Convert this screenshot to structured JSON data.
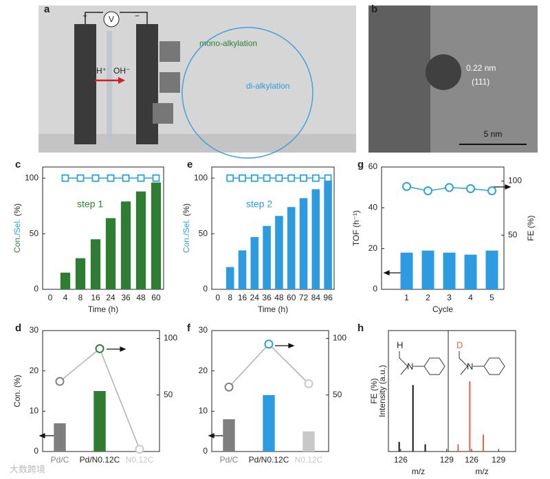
{
  "panel_labels": [
    "a",
    "b",
    "c",
    "d",
    "e",
    "f",
    "g",
    "h"
  ],
  "schematic": {
    "plus": "+",
    "minus": "−",
    "voltmeter": "V",
    "proton": "H⁺",
    "hydroxide": "OH⁻",
    "mono": "mono-alkylation",
    "di": "di-alkylation"
  },
  "tem": {
    "spacing": "0.22 nm",
    "plane": "(111)",
    "scale_bar": "5 nm"
  },
  "watermark": "大数跨境",
  "chart_data": [
    {
      "type": "bar",
      "x_label": "Time (h)",
      "y_label": "(%)",
      "annotation": "step 1",
      "categories": [
        "0",
        "4",
        "8",
        "16",
        "24",
        "36",
        "48",
        "60"
      ],
      "series": [
        {
          "name": "Con.",
          "kind": "bar",
          "color": "#2e7d32",
          "values": [
            0,
            15,
            28,
            45,
            64,
            79,
            88,
            96
          ]
        },
        {
          "name": "/Sel.",
          "kind": "line",
          "marker": "square",
          "color": "#29a3e0",
          "values": [
            null,
            100,
            100,
            100,
            100,
            100,
            100,
            100
          ]
        }
      ],
      "ylim": [
        0,
        110
      ],
      "yticks": [
        0,
        50,
        100
      ]
    },
    {
      "type": "bar",
      "x_label": "Time (h)",
      "y_label": "(%)",
      "annotation": "step 2",
      "categories": [
        "0",
        "8",
        "16",
        "24",
        "36",
        "48",
        "60",
        "72",
        "84",
        "96"
      ],
      "series": [
        {
          "name": "Con.",
          "kind": "bar",
          "color": "#2d9be0",
          "values": [
            0,
            20,
            35,
            47,
            57,
            66,
            74,
            82,
            90,
            98
          ]
        },
        {
          "name": "/Sel.",
          "kind": "line",
          "marker": "square",
          "color": "#29a3e0",
          "values": [
            null,
            100,
            100,
            100,
            100,
            100,
            100,
            100,
            100,
            100
          ]
        }
      ],
      "ylim": [
        0,
        110
      ],
      "yticks": [
        0,
        50,
        100
      ]
    },
    {
      "type": "bar",
      "x_label": "Cycle",
      "y_label": "TOF (h⁻¹)",
      "y2_label": "FE (%)",
      "categories": [
        "1",
        "2",
        "3",
        "4",
        "5"
      ],
      "series": [
        {
          "kind": "bar",
          "color": "#2d9be0",
          "values": [
            18,
            19,
            18,
            17,
            19
          ]
        },
        {
          "kind": "line",
          "marker": "circle",
          "color": "#29a3e0",
          "axis": "y2",
          "values": [
            95,
            91,
            94,
            93,
            91
          ]
        }
      ],
      "ylim": [
        0,
        60
      ],
      "yticks": [
        0,
        20,
        40,
        60
      ],
      "y2lim": [
        0,
        113
      ],
      "y2ticks": [
        50,
        100
      ]
    },
    {
      "type": "bar",
      "y_label": "Con. (%)",
      "categories": [
        "Pd/C",
        "Pd/N0.12C",
        "N0.12C"
      ],
      "category_colors": [
        "#808080",
        "#222222",
        "#c8c8c8"
      ],
      "series": [
        {
          "kind": "bar",
          "colors": [
            "#7f7f7f",
            "#2e7d32",
            "#c8c8c8"
          ],
          "values": [
            7,
            15,
            0
          ]
        },
        {
          "kind": "line",
          "marker": "circle",
          "color": "#b0b0b0",
          "marker_colors": [
            "#808080",
            "#2e7d32",
            "#c8c8c8"
          ],
          "axis": "y2",
          "values": [
            62,
            91,
            2
          ]
        }
      ],
      "ylim": [
        0,
        30
      ],
      "yticks": [
        0,
        10,
        20,
        30
      ],
      "y2lim": [
        0,
        107
      ],
      "y2ticks": [
        50,
        100
      ]
    },
    {
      "type": "bar",
      "categories": [
        "Pd/C",
        "Pd/N0.12C",
        "N0.12C"
      ],
      "category_colors": [
        "#808080",
        "#222222",
        "#c8c8c8"
      ],
      "series": [
        {
          "kind": "bar",
          "colors": [
            "#7f7f7f",
            "#2d9be0",
            "#c8c8c8"
          ],
          "values": [
            8,
            14,
            5
          ]
        },
        {
          "kind": "line",
          "marker": "circle",
          "color": "#b0b0b0",
          "marker_colors": [
            "#808080",
            "#2d9be0",
            "#c8c8c8"
          ],
          "axis": "y2",
          "values": [
            57,
            95,
            60
          ]
        }
      ],
      "ylim": [
        0,
        30
      ],
      "yticks": [
        0,
        10,
        20,
        30
      ],
      "y2lim": [
        0,
        107
      ],
      "y2ticks": [
        50,
        100
      ]
    },
    {
      "type": "stem",
      "x_label": "m/z",
      "y_label": "Intensity (a.u.)",
      "y_label_overlay": "FE (%)",
      "atoms": [
        "H",
        "N"
      ],
      "color": "#111111",
      "x": [
        125.9,
        126.8,
        127.6
      ],
      "values": [
        8,
        55,
        6
      ],
      "xlim": [
        125.2,
        129.1
      ],
      "xticks": [
        126,
        129
      ],
      "ylim": [
        0,
        100
      ]
    },
    {
      "type": "stem",
      "x_label": "m/z",
      "atoms": [
        "D",
        "N"
      ],
      "color": "#e0604a",
      "x": [
        124.5,
        125.8,
        127.3
      ],
      "values": [
        6,
        58,
        14
      ],
      "xlim": [
        123.4,
        130.9
      ],
      "xticks": [
        126,
        129
      ],
      "ylim": [
        0,
        100
      ]
    }
  ]
}
